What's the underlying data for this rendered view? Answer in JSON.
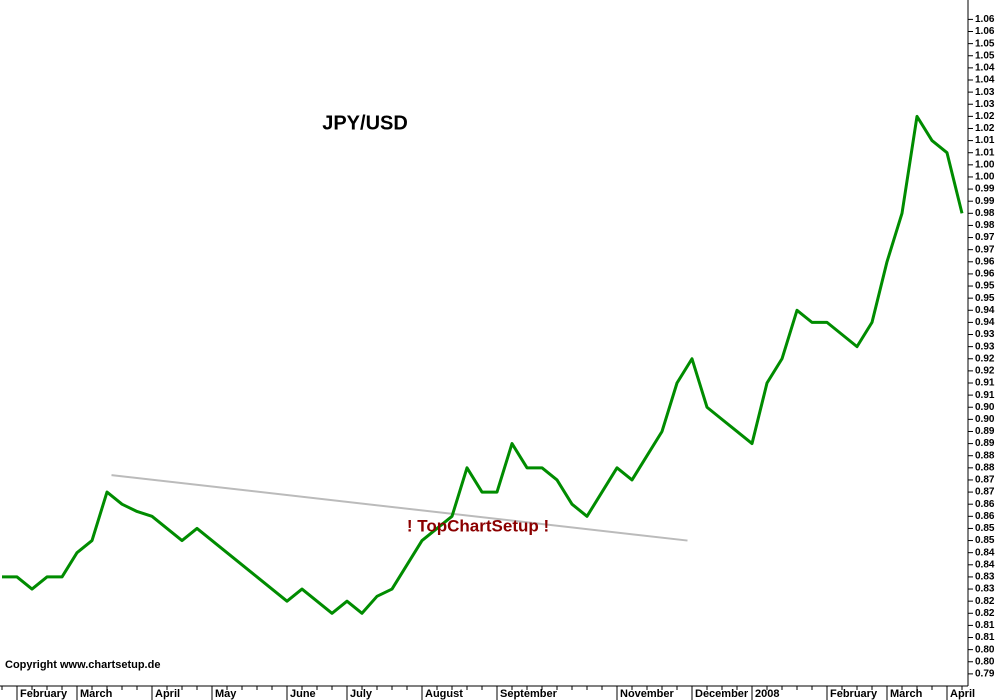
{
  "chart_data": {
    "type": "line",
    "title": "JPY/USD",
    "annotation": "! TopChartSetup !",
    "copyright": "Copyright www.chartsetup.de",
    "color": "#008c00",
    "categories": [
      null,
      "February",
      null,
      null,
      null,
      "March",
      null,
      null,
      null,
      null,
      "April",
      null,
      null,
      null,
      "May",
      null,
      null,
      null,
      null,
      "June",
      null,
      null,
      null,
      "July",
      null,
      null,
      null,
      null,
      "August",
      null,
      null,
      null,
      null,
      "September",
      null,
      null,
      null,
      null,
      null,
      null,
      null,
      "November",
      null,
      null,
      null,
      null,
      "December",
      null,
      null,
      null,
      "2008",
      null,
      null,
      null,
      null,
      "February",
      null,
      null,
      null,
      "March",
      null,
      null,
      null,
      "April",
      null
    ],
    "values": [
      0.83,
      0.83,
      0.825,
      0.83,
      0.83,
      0.84,
      0.845,
      0.865,
      0.86,
      0.857,
      0.855,
      0.85,
      0.845,
      0.85,
      0.845,
      0.84,
      0.835,
      0.83,
      0.825,
      0.82,
      0.825,
      0.82,
      0.815,
      0.82,
      0.815,
      0.822,
      0.825,
      0.835,
      0.845,
      0.85,
      0.855,
      0.875,
      0.865,
      0.865,
      0.885,
      0.875,
      0.875,
      0.87,
      0.86,
      0.855,
      0.865,
      0.875,
      0.87,
      0.88,
      0.89,
      0.91,
      0.92,
      0.9,
      0.895,
      0.89,
      0.885,
      0.91,
      0.92,
      0.94,
      0.935,
      0.935,
      0.93,
      0.925,
      0.935,
      0.96,
      0.98,
      1.02,
      1.01,
      1.005,
      0.98
    ],
    "trendline": {
      "color": "#bbbbbb",
      "x": [
        7.3,
        45.7
      ],
      "values": [
        0.872,
        0.845
      ]
    },
    "ylim": [
      0.785,
      1.068
    ],
    "yticks": [
      {
        "value": 0.79,
        "label": "0.79"
      },
      {
        "value": 0.795,
        "label": "0.80"
      },
      {
        "value": 0.8,
        "label": "0.80"
      },
      {
        "value": 0.805,
        "label": "0.81"
      },
      {
        "value": 0.81,
        "label": "0.81"
      },
      {
        "value": 0.815,
        "label": "0.82"
      },
      {
        "value": 0.82,
        "label": "0.82"
      },
      {
        "value": 0.825,
        "label": "0.83"
      },
      {
        "value": 0.83,
        "label": "0.83"
      },
      {
        "value": 0.835,
        "label": "0.84"
      },
      {
        "value": 0.84,
        "label": "0.84"
      },
      {
        "value": 0.845,
        "label": "0.85"
      },
      {
        "value": 0.85,
        "label": "0.85"
      },
      {
        "value": 0.855,
        "label": "0.86"
      },
      {
        "value": 0.86,
        "label": "0.86"
      },
      {
        "value": 0.865,
        "label": "0.87"
      },
      {
        "value": 0.87,
        "label": "0.87"
      },
      {
        "value": 0.875,
        "label": "0.88"
      },
      {
        "value": 0.88,
        "label": "0.88"
      },
      {
        "value": 0.885,
        "label": "0.89"
      },
      {
        "value": 0.89,
        "label": "0.89"
      },
      {
        "value": 0.895,
        "label": "0.90"
      },
      {
        "value": 0.9,
        "label": "0.90"
      },
      {
        "value": 0.905,
        "label": "0.91"
      },
      {
        "value": 0.91,
        "label": "0.91"
      },
      {
        "value": 0.915,
        "label": "0.92"
      },
      {
        "value": 0.92,
        "label": "0.92"
      },
      {
        "value": 0.925,
        "label": "0.93"
      },
      {
        "value": 0.93,
        "label": "0.93"
      },
      {
        "value": 0.935,
        "label": "0.94"
      },
      {
        "value": 0.94,
        "label": "0.94"
      },
      {
        "value": 0.945,
        "label": "0.95"
      },
      {
        "value": 0.95,
        "label": "0.95"
      },
      {
        "value": 0.955,
        "label": "0.96"
      },
      {
        "value": 0.96,
        "label": "0.96"
      },
      {
        "value": 0.965,
        "label": "0.97"
      },
      {
        "value": 0.97,
        "label": "0.97"
      },
      {
        "value": 0.975,
        "label": "0.98"
      },
      {
        "value": 0.98,
        "label": "0.98"
      },
      {
        "value": 0.985,
        "label": "0.99"
      },
      {
        "value": 0.99,
        "label": "0.99"
      },
      {
        "value": 0.995,
        "label": "1.00"
      },
      {
        "value": 1.0,
        "label": "1.00"
      },
      {
        "value": 1.005,
        "label": "1.01"
      },
      {
        "value": 1.01,
        "label": "1.01"
      },
      {
        "value": 1.015,
        "label": "1.02"
      },
      {
        "value": 1.02,
        "label": "1.02"
      },
      {
        "value": 1.025,
        "label": "1.03"
      },
      {
        "value": 1.03,
        "label": "1.03"
      },
      {
        "value": 1.035,
        "label": "1.04"
      },
      {
        "value": 1.04,
        "label": "1.04"
      },
      {
        "value": 1.045,
        "label": "1.05"
      },
      {
        "value": 1.05,
        "label": "1.05"
      },
      {
        "value": 1.055,
        "label": "1.06"
      },
      {
        "value": 1.06,
        "label": "1.06"
      }
    ]
  }
}
